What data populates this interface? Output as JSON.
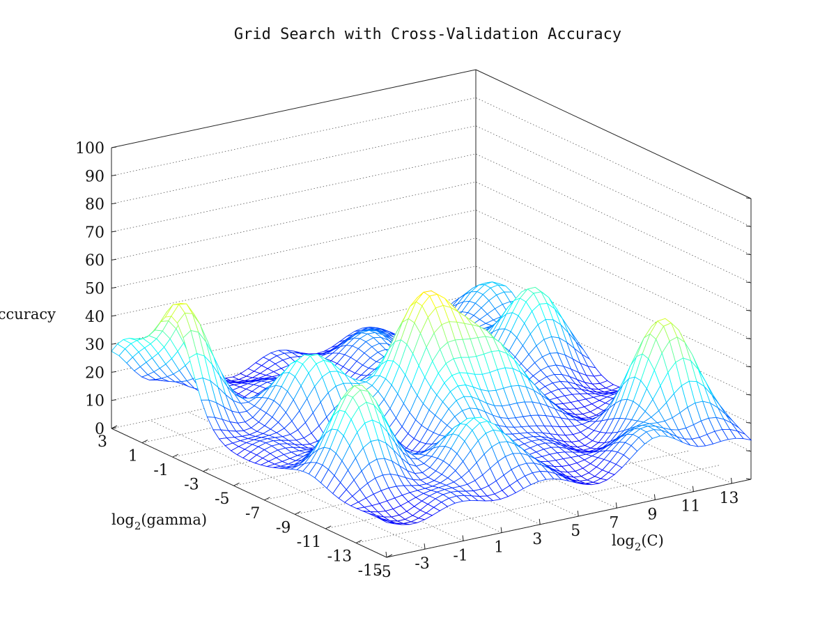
{
  "chart_data": {
    "type": "surface",
    "title": "Grid Search with Cross-Validation Accuracy",
    "xlabel_base": "log",
    "xlabel_sub": "2",
    "xlabel_rest": "(C)",
    "ylabel_base": "log",
    "ylabel_sub": "2",
    "ylabel_rest": "(gamma)",
    "zlabel": "Accuracy",
    "x_ticks": [
      "-5",
      "-3",
      "-1",
      "1",
      "3",
      "5",
      "7",
      "9",
      "11",
      "13"
    ],
    "y_ticks": [
      "3",
      "1",
      "-1",
      "-3",
      "-5",
      "-7",
      "-9",
      "-11",
      "-13",
      "-15"
    ],
    "z_ticks": [
      "0",
      "10",
      "20",
      "30",
      "40",
      "50",
      "60",
      "70",
      "80",
      "90",
      "100"
    ],
    "xlim": [
      -5,
      14
    ],
    "ylim": [
      -15,
      3
    ],
    "zlim": [
      0,
      100
    ],
    "colormap": "jet",
    "grid": true,
    "peaks": [
      {
        "log2C": 4.0,
        "log2gamma": -6.0,
        "accuracy_rise": 45
      },
      {
        "log2C": 6.5,
        "log2gamma": -7.5,
        "accuracy_rise": 28
      },
      {
        "log2C": 6.5,
        "log2gamma": -3.5,
        "accuracy_rise": 28
      },
      {
        "log2C": 3.5,
        "log2gamma": -9.0,
        "accuracy_rise": 12
      },
      {
        "log2C": 2.0,
        "log2gamma": -12.5,
        "accuracy_rise": 20
      },
      {
        "log2C": -2.5,
        "log2gamma": -10.0,
        "accuracy_rise": 33
      },
      {
        "log2C": 0.0,
        "log2gamma": -4.0,
        "accuracy_rise": 25
      },
      {
        "log2C": -4.5,
        "log2gamma": -1.0,
        "accuracy_rise": 40
      },
      {
        "log2C": -5.0,
        "log2gamma": 2.0,
        "accuracy_rise": 20
      },
      {
        "log2C": 12.0,
        "log2gamma": -12.0,
        "accuracy_rise": 40
      },
      {
        "log2C": 12.0,
        "log2gamma": -3.0,
        "accuracy_rise": 28
      },
      {
        "log2C": 13.5,
        "log2gamma": 1.0,
        "accuracy_rise": 18
      },
      {
        "log2C": 9.5,
        "log2gamma": -14.5,
        "accuracy_rise": 10
      },
      {
        "log2C": 7.0,
        "log2gamma": 1.0,
        "accuracy_rise": 10
      }
    ],
    "baseline_accuracy": 12,
    "trough_accuracy": 2
  }
}
